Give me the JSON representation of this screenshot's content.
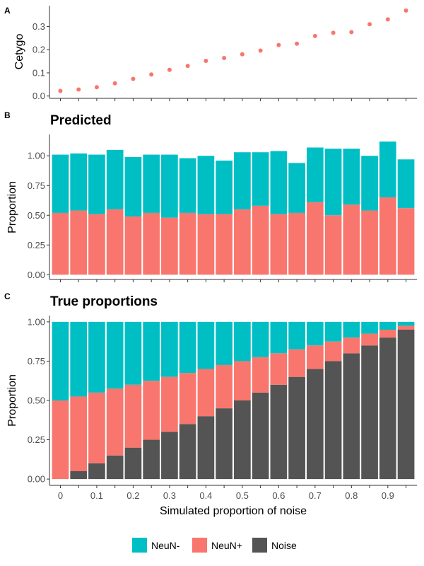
{
  "colors": {
    "neun_minus": "#00BFC4",
    "neun_plus": "#F8766D",
    "noise": "#545454",
    "point": "#F8766D",
    "axis": "#333333"
  },
  "legend": {
    "items": [
      {
        "key": "neun_minus",
        "label": "NeuN-"
      },
      {
        "key": "neun_plus",
        "label": "NeuN+"
      },
      {
        "key": "noise",
        "label": "Noise"
      }
    ]
  },
  "chart_data": [
    {
      "panel": "A",
      "type": "scatter",
      "title": "",
      "xlabel": "",
      "ylabel": "Cetygo",
      "x": [
        0,
        0.05,
        0.1,
        0.15,
        0.2,
        0.25,
        0.3,
        0.35,
        0.4,
        0.45,
        0.5,
        0.55,
        0.6,
        0.65,
        0.7,
        0.75,
        0.8,
        0.85,
        0.9,
        0.95
      ],
      "y": [
        0.022,
        0.028,
        0.038,
        0.055,
        0.074,
        0.093,
        0.113,
        0.13,
        0.152,
        0.164,
        0.18,
        0.196,
        0.22,
        0.226,
        0.259,
        0.273,
        0.276,
        0.31,
        0.331,
        0.369
      ],
      "ylim": [
        -0.01,
        0.39
      ],
      "xlim": [
        -0.03,
        0.98
      ],
      "yticks": [
        "0.0",
        "0.1",
        "0.2",
        "0.3"
      ],
      "ytick_values": [
        0,
        0.1,
        0.2,
        0.3
      ]
    },
    {
      "panel": "B",
      "type": "bar",
      "title": "Predicted",
      "xlabel": "",
      "ylabel": "Proportion",
      "x": [
        0,
        0.05,
        0.1,
        0.15,
        0.2,
        0.25,
        0.3,
        0.35,
        0.4,
        0.45,
        0.5,
        0.55,
        0.6,
        0.65,
        0.7,
        0.75,
        0.8,
        0.85,
        0.9,
        0.95
      ],
      "series": [
        {
          "name": "NeuN+",
          "color_key": "neun_plus",
          "values": [
            0.52,
            0.54,
            0.51,
            0.55,
            0.49,
            0.52,
            0.48,
            0.52,
            0.51,
            0.51,
            0.55,
            0.58,
            0.51,
            0.52,
            0.61,
            0.5,
            0.59,
            0.54,
            0.65,
            0.56
          ]
        },
        {
          "name": "NeuN-",
          "color_key": "neun_minus",
          "values": [
            0.49,
            0.48,
            0.5,
            0.5,
            0.5,
            0.49,
            0.53,
            0.46,
            0.49,
            0.45,
            0.48,
            0.45,
            0.53,
            0.42,
            0.46,
            0.56,
            0.47,
            0.46,
            0.47,
            0.41
          ]
        }
      ],
      "ylim": [
        -0.04,
        1.18
      ],
      "xlim": [
        -0.03,
        0.98
      ],
      "yticks": [
        "0.00",
        "0.25",
        "0.50",
        "0.75",
        "1.00"
      ],
      "ytick_values": [
        0,
        0.25,
        0.5,
        0.75,
        1
      ]
    },
    {
      "panel": "C",
      "type": "bar",
      "title": "True proportions",
      "xlabel": "Simulated proportion of noise",
      "ylabel": "Proportion",
      "x": [
        0,
        0.05,
        0.1,
        0.15,
        0.2,
        0.25,
        0.3,
        0.35,
        0.4,
        0.45,
        0.5,
        0.55,
        0.6,
        0.65,
        0.7,
        0.75,
        0.8,
        0.85,
        0.9,
        0.95
      ],
      "series": [
        {
          "name": "Noise",
          "color_key": "noise",
          "values": [
            0,
            0.05,
            0.1,
            0.15,
            0.2,
            0.25,
            0.3,
            0.35,
            0.4,
            0.45,
            0.5,
            0.55,
            0.6,
            0.65,
            0.7,
            0.75,
            0.8,
            0.85,
            0.9,
            0.95
          ]
        },
        {
          "name": "NeuN+",
          "color_key": "neun_plus",
          "values": [
            0.5,
            0.475,
            0.45,
            0.425,
            0.4,
            0.375,
            0.35,
            0.325,
            0.3,
            0.275,
            0.25,
            0.225,
            0.2,
            0.175,
            0.15,
            0.125,
            0.1,
            0.075,
            0.05,
            0.025
          ]
        },
        {
          "name": "NeuN-",
          "color_key": "neun_minus",
          "values": [
            0.5,
            0.475,
            0.45,
            0.425,
            0.4,
            0.375,
            0.35,
            0.325,
            0.3,
            0.275,
            0.25,
            0.225,
            0.2,
            0.175,
            0.15,
            0.125,
            0.1,
            0.075,
            0.05,
            0.025
          ]
        }
      ],
      "ylim": [
        -0.04,
        1.04
      ],
      "xlim": [
        -0.03,
        0.98
      ],
      "yticks": [
        "0.00",
        "0.25",
        "0.50",
        "0.75",
        "1.00"
      ],
      "ytick_values": [
        0,
        0.25,
        0.5,
        0.75,
        1
      ],
      "xticks": [
        "0",
        "0.1",
        "0.2",
        "0.3",
        "0.4",
        "0.5",
        "0.6",
        "0.7",
        "0.8",
        "0.9"
      ],
      "xtick_values": [
        0,
        0.1,
        0.2,
        0.3,
        0.4,
        0.5,
        0.6,
        0.7,
        0.8,
        0.9
      ]
    }
  ]
}
